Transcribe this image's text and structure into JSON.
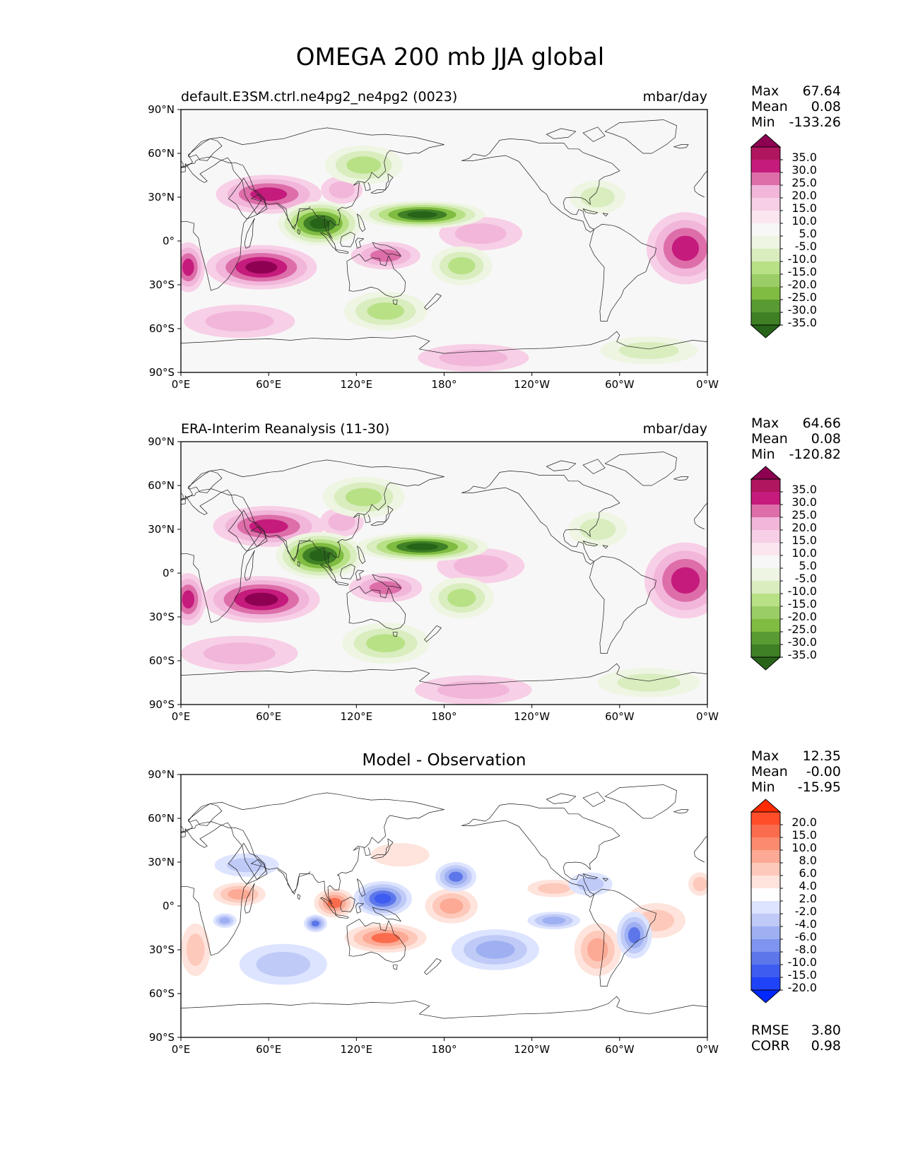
{
  "title": "OMEGA 200 mb JJA global",
  "axes": {
    "lat_ticks": [
      "90°N",
      "60°N",
      "30°N",
      "0°",
      "30°S",
      "60°S",
      "90°S"
    ],
    "lon_ticks": [
      "0°E",
      "60°E",
      "120°E",
      "180°",
      "120°W",
      "60°W",
      "0°W"
    ]
  },
  "panels": [
    {
      "left_title": "default.E3SM.ctrl.ne4pg2_ne4pg2 (0023)",
      "right_title": "mbar/day",
      "center_title": "",
      "stats": [
        {
          "label": "Max",
          "value": "67.64"
        },
        {
          "label": "Mean",
          "value": "0.08"
        },
        {
          "label": "Min",
          "value": "-133.26"
        }
      ],
      "colorbar": "seq",
      "bottom_stats": []
    },
    {
      "left_title": "ERA-Interim Reanalysis (11-30)",
      "right_title": "mbar/day",
      "center_title": "",
      "stats": [
        {
          "label": "Max",
          "value": "64.66"
        },
        {
          "label": "Mean",
          "value": "0.08"
        },
        {
          "label": "Min",
          "value": "-120.82"
        }
      ],
      "colorbar": "seq",
      "bottom_stats": []
    },
    {
      "left_title": "",
      "right_title": "",
      "center_title": "Model - Observation",
      "stats": [
        {
          "label": "Max",
          "value": "12.35"
        },
        {
          "label": "Mean",
          "value": "-0.00"
        },
        {
          "label": "Min",
          "value": "-15.95"
        }
      ],
      "colorbar": "diff",
      "bottom_stats": [
        {
          "label": "RMSE",
          "value": "3.80"
        },
        {
          "label": "CORR",
          "value": "0.98"
        }
      ]
    }
  ],
  "colorbars": {
    "seq": {
      "labels": [
        "35.0",
        "30.0",
        "25.0",
        "20.0",
        "15.0",
        "10.0",
        "5.0",
        "-5.0",
        "-10.0",
        "-15.0",
        "-20.0",
        "-25.0",
        "-30.0",
        "-35.0"
      ],
      "colors": [
        "#8e0152",
        "#b0155f",
        "#c51b7d",
        "#dd6ea9",
        "#f1b6da",
        "#f7cfe6",
        "#fbe6f0",
        "#f7f7f7",
        "#eef5e2",
        "#d9edbf",
        "#b8e186",
        "#9bcd66",
        "#7fbc41",
        "#5a9a32",
        "#3f7f25",
        "#276419"
      ]
    },
    "diff": {
      "labels": [
        "20.0",
        "15.0",
        "10.0",
        "8.0",
        "6.0",
        "4.0",
        "2.0",
        "-2.0",
        "-4.0",
        "-6.0",
        "-8.0",
        "-10.0",
        "-15.0",
        "-20.0"
      ],
      "colors": [
        "#ff2a00",
        "#ff4d2a",
        "#fa6c4d",
        "#fb8b6e",
        "#fcaa95",
        "#fdc9bb",
        "#fee4dc",
        "#ffffff",
        "#dde4ff",
        "#bfcaf7",
        "#9fb0f2",
        "#7e94ee",
        "#5d77ea",
        "#3e5cf0",
        "#1f43f6",
        "#0028ff"
      ]
    }
  }
}
